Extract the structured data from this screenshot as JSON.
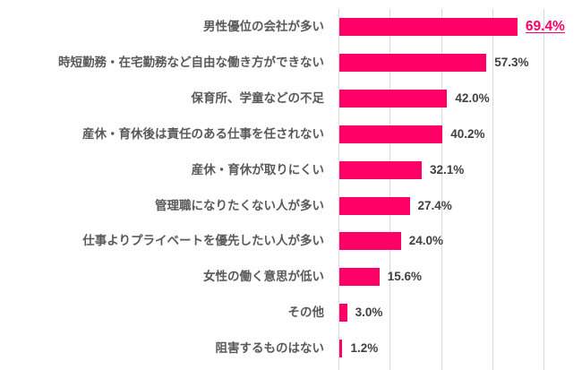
{
  "chart_data": {
    "type": "bar",
    "orientation": "horizontal",
    "title": "",
    "xlabel": "",
    "ylabel": "",
    "xlim": [
      0,
      80
    ],
    "grid": true,
    "gridlines_at": [
      0,
      20,
      40,
      60,
      80
    ],
    "value_suffix": "%",
    "bar_color": "#ff0066",
    "highlight_color": "#ff0066",
    "categories": [
      "男性優位の会社が多い",
      "時短勤務・在宅勤務など自由な働き方ができない",
      "保育所、学童などの不足",
      "産休・育休後は責任のある仕事を任されない",
      "産休・育休が取りにくい",
      "管理職になりたくない人が多い",
      "仕事よりプライベートを優先したい人が多い",
      "女性の働く意思が低い",
      "その他",
      "阻害するものはない"
    ],
    "values": [
      69.4,
      57.3,
      42.0,
      40.2,
      32.1,
      27.4,
      24.0,
      15.6,
      3.0,
      1.2
    ],
    "value_labels": [
      "69.4%",
      "57.3%",
      "42.0%",
      "40.2%",
      "32.1%",
      "27.4%",
      "24.0%",
      "15.6%",
      "3.0%",
      "1.2%"
    ],
    "highlighted_index": 0
  }
}
